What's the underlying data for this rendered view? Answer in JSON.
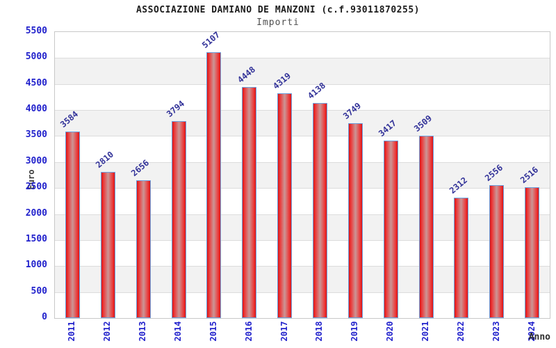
{
  "header": {
    "title": "ASSOCIAZIONE DAMIANO DE MANZONI (c.f.93011870255)",
    "subtitle": "Importi"
  },
  "chart_data": {
    "type": "bar",
    "title": "ASSOCIAZIONE DAMIANO DE MANZONI (c.f.93011870255)",
    "subtitle": "Importi",
    "xlabel": "Anno",
    "ylabel": "Euro",
    "categories": [
      "2011",
      "2012",
      "2013",
      "2014",
      "2015",
      "2016",
      "2017",
      "2018",
      "2019",
      "2020",
      "2021",
      "2022",
      "2023",
      "2024"
    ],
    "values": [
      3584,
      2810,
      2656,
      3794,
      5107,
      4448,
      4319,
      4138,
      3749,
      3417,
      3509,
      2312,
      2556,
      2516
    ],
    "ylim": [
      0,
      5500
    ],
    "ytick_step": 500,
    "grid": "horizontal",
    "bands": "alternating",
    "legend": "none"
  },
  "colors": {
    "bar_edge_red": "#e01313",
    "bar_mid_red": "#cb9696",
    "bar_border_blue": "#6aa2e0",
    "tick_label_blue": "#2222cc",
    "value_label_navy": "#333399",
    "band_gray": "#f2f2f2",
    "grid_gray": "#dcdcdc",
    "plot_border": "#c8c8c8",
    "title_dark": "#1c1c1c",
    "subtitle_gray": "#4f4f4f"
  }
}
